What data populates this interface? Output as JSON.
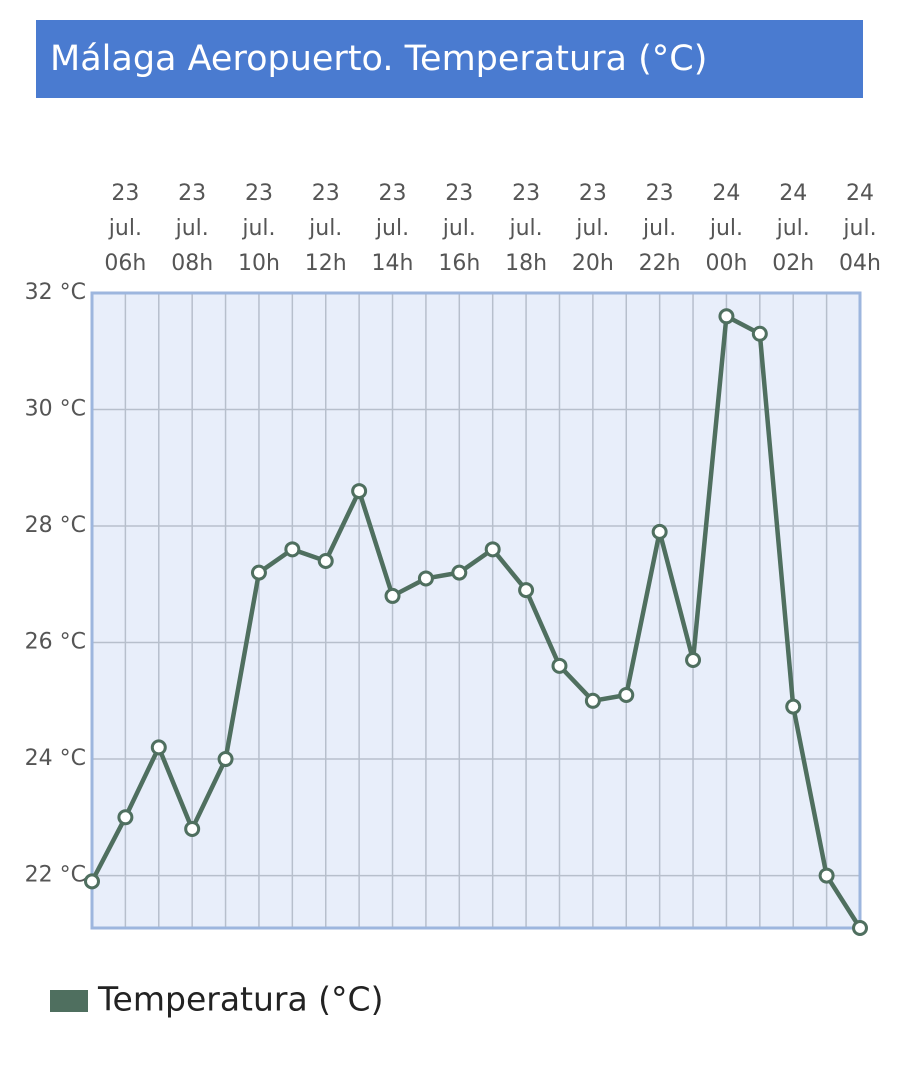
{
  "chart_data": {
    "type": "line",
    "title": "Málaga Aeropuerto. Temperatura (°C)",
    "categories": [
      null,
      "23 jul. 06h",
      null,
      "23 jul. 08h",
      null,
      "23 jul. 10h",
      null,
      "23 jul. 12h",
      null,
      "23 jul. 14h",
      null,
      "23 jul. 16h",
      null,
      "23 jul. 18h",
      null,
      "23 jul. 20h",
      null,
      "23 jul. 22h",
      null,
      "24 jul. 00h",
      null,
      "24 jul. 02h",
      null,
      "24 jul. 04h"
    ],
    "series": [
      {
        "name": "Temperatura (°C)",
        "color": "#4f6f5f",
        "values": [
          21.9,
          23.0,
          24.2,
          22.8,
          24.0,
          27.2,
          27.6,
          27.4,
          28.6,
          26.8,
          27.1,
          27.2,
          27.6,
          26.9,
          25.6,
          25.0,
          25.1,
          27.9,
          25.7,
          31.6,
          31.3,
          24.9,
          22.0,
          21.1
        ]
      }
    ],
    "ylim": [
      21.1,
      32
    ],
    "yticks": [
      {
        "value": 22,
        "label": "22 °C"
      },
      {
        "value": 24,
        "label": "24 °C"
      },
      {
        "value": 26,
        "label": "26 °C"
      },
      {
        "value": 28,
        "label": "28 °C"
      },
      {
        "value": 30,
        "label": "30 °C"
      },
      {
        "value": 32,
        "label": "32 °C"
      }
    ],
    "grid": true,
    "legend": "bottom-left"
  }
}
